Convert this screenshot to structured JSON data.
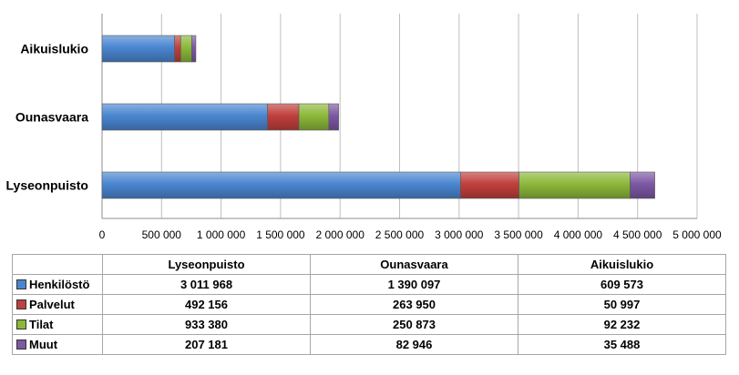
{
  "chart_data": {
    "type": "bar",
    "orientation": "horizontal",
    "stacked": true,
    "categories": [
      "Aikuislukio",
      "Ounasvaara",
      "Lyseonpuisto"
    ],
    "series": [
      {
        "name": "Henkilöstö",
        "color": "#4a86d0",
        "values": [
          609573,
          1390097,
          3011968
        ]
      },
      {
        "name": "Palvelut",
        "color": "#c0403d",
        "values": [
          50997,
          263950,
          492156
        ]
      },
      {
        "name": "Tilat",
        "color": "#8cb83a",
        "values": [
          92232,
          250873,
          933380
        ]
      },
      {
        "name": "Muut",
        "color": "#7d58a3",
        "values": [
          35488,
          82946,
          207181
        ]
      }
    ],
    "xlim": [
      0,
      5000000
    ],
    "xticks": [
      0,
      500000,
      1000000,
      1500000,
      2000000,
      2500000,
      3000000,
      3500000,
      4000000,
      4500000,
      5000000
    ],
    "xtick_labels": [
      "0",
      "500 000",
      "1 000 000",
      "1 500 000",
      "2 000 000",
      "2 500 000",
      "3 000 000",
      "3 500 000",
      "4 000 000",
      "4 500 000",
      "5 000 000"
    ],
    "grid": true,
    "legend": "data table below chart"
  },
  "table": {
    "columns": [
      "Lyseonpuisto",
      "Ounasvaara",
      "Aikuislukio"
    ],
    "rows": [
      {
        "label": "Henkilöstö",
        "color": "#4a86d0",
        "values": [
          "3 011 968",
          "1 390 097",
          "609 573"
        ]
      },
      {
        "label": "Palvelut",
        "color": "#c0403d",
        "values": [
          "492 156",
          "263 950",
          "50 997"
        ]
      },
      {
        "label": "Tilat",
        "color": "#8cb83a",
        "values": [
          "933 380",
          "250 873",
          "92 232"
        ]
      },
      {
        "label": "Muut",
        "color": "#7d58a3",
        "values": [
          "207 181",
          "82 946",
          "35 488"
        ]
      }
    ]
  }
}
